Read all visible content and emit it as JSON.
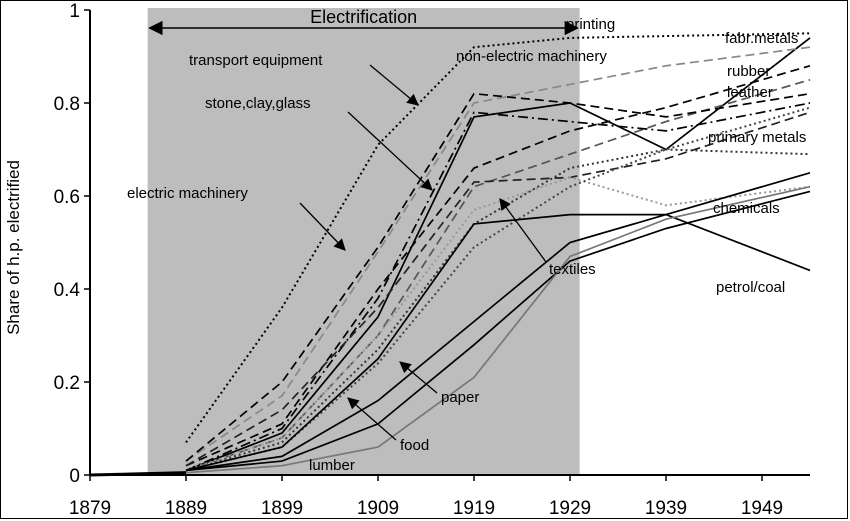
{
  "chart_data": {
    "type": "line",
    "title": "",
    "xlabel": "",
    "ylabel": "Share of h.p. electrified",
    "xlim": [
      1879,
      1954
    ],
    "ylim": [
      0,
      1
    ],
    "x_ticks": [
      "1879",
      "1889",
      "1899",
      "1909",
      "1919",
      "1929",
      "1939",
      "1949"
    ],
    "y_ticks": [
      "0",
      "0.2",
      "0.4",
      "0.6",
      "0.8",
      "1"
    ],
    "grid": false,
    "legend": "none",
    "shaded_band": {
      "label": "Electrification",
      "x_start": 1885,
      "x_end": 1930
    },
    "x": [
      1879,
      1889,
      1899,
      1909,
      1919,
      1929,
      1939,
      1954
    ],
    "series": [
      {
        "name": "printing",
        "style": "dotted",
        "color": "#000000",
        "values": [
          null,
          0.07,
          0.36,
          0.71,
          0.92,
          0.94,
          null,
          0.95
        ]
      },
      {
        "name": "fabr.metals",
        "style": "solid",
        "color": "#000000",
        "values": [
          null,
          0.01,
          0.09,
          0.34,
          0.77,
          0.8,
          0.7,
          0.94
        ]
      },
      {
        "name": "non-electric machinery",
        "style": "dashed",
        "color": "#888888",
        "values": [
          null,
          0.03,
          0.17,
          0.48,
          0.8,
          0.84,
          0.88,
          0.92
        ]
      },
      {
        "name": "rubber",
        "style": "dashed",
        "color": "#000000",
        "values": [
          null,
          0.02,
          0.11,
          0.4,
          0.66,
          0.74,
          0.79,
          0.88
        ]
      },
      {
        "name": "leather",
        "style": "dashed",
        "color": "#555555",
        "values": [
          null,
          0.01,
          0.08,
          0.3,
          0.62,
          0.69,
          0.76,
          0.85
        ]
      },
      {
        "name": "transport equipment",
        "style": "dashed",
        "color": "#000000",
        "values": [
          null,
          0.03,
          0.2,
          0.49,
          0.82,
          0.8,
          0.77,
          0.82
        ]
      },
      {
        "name": "stone,clay,glass",
        "style": "dashdot",
        "color": "#000000",
        "values": [
          null,
          0.01,
          0.1,
          0.38,
          0.78,
          0.76,
          0.74,
          0.8
        ]
      },
      {
        "name": "primary metals",
        "style": "dotted",
        "color": "#333333",
        "values": [
          null,
          0.01,
          0.07,
          0.27,
          0.54,
          0.66,
          0.7,
          0.69
        ]
      },
      {
        "name": "electric machinery",
        "style": "dashed",
        "color": "#222222",
        "values": [
          null,
          0.02,
          0.14,
          0.36,
          0.63,
          0.64,
          0.68,
          0.78
        ]
      },
      {
        "name": "chemicals",
        "style": "dotted",
        "color": "#999999",
        "values": [
          null,
          0.01,
          0.08,
          0.3,
          0.57,
          0.64,
          0.58,
          0.62
        ]
      },
      {
        "name": "textiles",
        "style": "dotted",
        "color": "#444444",
        "values": [
          null,
          0.01,
          0.06,
          0.24,
          0.49,
          0.62,
          0.7,
          0.79
        ]
      },
      {
        "name": "petrol/coal",
        "style": "solid",
        "color": "#000000",
        "values": [
          null,
          0.01,
          0.06,
          0.25,
          0.54,
          0.56,
          0.56,
          0.44
        ]
      },
      {
        "name": "paper",
        "style": "solid",
        "color": "#000000",
        "values": [
          null,
          0.01,
          0.04,
          0.16,
          0.33,
          0.5,
          0.56,
          0.65
        ]
      },
      {
        "name": "food",
        "style": "solid",
        "color": "#000000",
        "values": [
          null,
          0.01,
          0.03,
          0.11,
          0.28,
          0.46,
          0.53,
          0.61
        ]
      },
      {
        "name": "lumber",
        "style": "solid",
        "color": "#777777",
        "values": [
          null,
          0.005,
          0.02,
          0.06,
          0.21,
          0.47,
          0.55,
          0.62
        ]
      }
    ],
    "baseline": {
      "x": [
        1879,
        1889
      ],
      "values": [
        0,
        0.005
      ]
    }
  }
}
